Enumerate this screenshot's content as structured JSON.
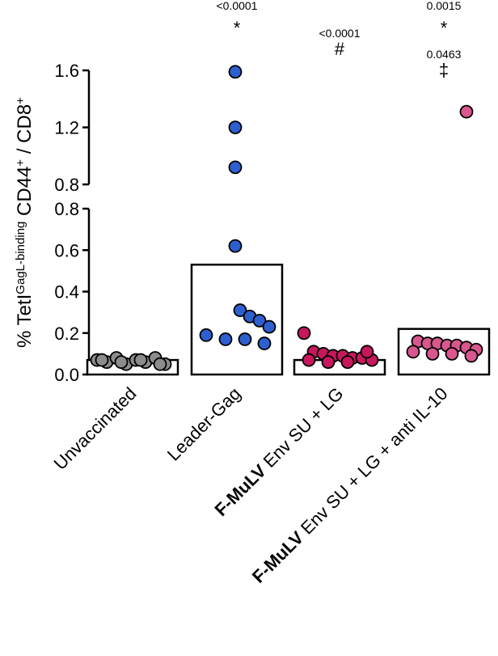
{
  "chart_data": {
    "type": "bar",
    "ylabel": {
      "prefix": "% TetI",
      "superscript1": "GagL-binding",
      "middle": " CD44",
      "superscript2": "+",
      "middle2": " / CD8",
      "superscript3": "+"
    },
    "y_axis_broken": true,
    "y_lower_range": [
      0.0,
      0.8
    ],
    "y_upper_range": [
      0.8,
      1.6
    ],
    "y_ticks_lower": [
      {
        "value": 0.0,
        "label": "0.0"
      },
      {
        "value": 0.2,
        "label": "0.2"
      },
      {
        "value": 0.4,
        "label": "0.4"
      },
      {
        "value": 0.6,
        "label": "0.6"
      },
      {
        "value": 0.8,
        "label": "0.8"
      }
    ],
    "y_ticks_upper": [
      {
        "value": 0.8,
        "label": "0.8"
      },
      {
        "value": 1.2,
        "label": "1.2"
      },
      {
        "value": 1.6,
        "label": "1.6"
      }
    ],
    "categories": [
      {
        "bold": "",
        "rest": "Unvaccinated"
      },
      {
        "bold": "",
        "rest": "Leader-Gag"
      },
      {
        "bold": "F-MuLV",
        "rest": " Env SU + LG"
      },
      {
        "bold": "F-MuLV",
        "rest": " Env SU + LG + anti IL-10"
      }
    ],
    "series": [
      {
        "bar": 0.07,
        "color": "#8c8c8c",
        "points": [
          0.07,
          0.06,
          0.08,
          0.05,
          0.07,
          0.06,
          0.08,
          0.05,
          0.07,
          0.06,
          0.07,
          0.05
        ],
        "annotations": []
      },
      {
        "bar": 0.53,
        "color": "#2e5fcf",
        "points": [
          1.59,
          1.2,
          0.92,
          0.62,
          0.31,
          0.28,
          0.26,
          0.23,
          0.19,
          0.17,
          0.17,
          0.15
        ],
        "annotations": [
          {
            "text": "<0.0001",
            "kind": "p"
          },
          {
            "text": "*",
            "kind": "sym"
          }
        ]
      },
      {
        "bar": 0.07,
        "color": "#c8175d",
        "points": [
          0.2,
          0.11,
          0.1,
          0.09,
          0.09,
          0.08,
          0.08,
          0.07,
          0.07,
          0.06,
          0.06,
          0.11
        ],
        "annotations": [
          {
            "text": "<0.0001",
            "kind": "p"
          },
          {
            "text": "#",
            "kind": "sym"
          }
        ]
      },
      {
        "bar": 0.22,
        "color": "#d9578f",
        "points": [
          1.31,
          0.16,
          0.15,
          0.15,
          0.14,
          0.14,
          0.13,
          0.12,
          0.11,
          0.1,
          0.1,
          0.09
        ],
        "annotations": [
          {
            "text": "0.0015",
            "kind": "p"
          },
          {
            "text": "*",
            "kind": "sym"
          },
          {
            "text": "0.0463",
            "kind": "p"
          },
          {
            "text": "‡",
            "kind": "sym"
          }
        ]
      }
    ]
  }
}
